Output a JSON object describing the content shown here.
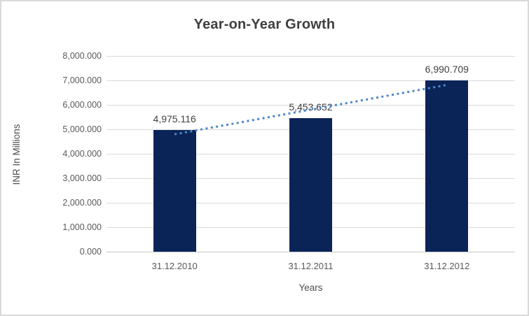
{
  "chart_data": {
    "type": "bar",
    "title": "Year-on-Year Growth",
    "xlabel": "Years",
    "ylabel": "INR In Millions",
    "categories": [
      "31.12.2010",
      "31.12.2011",
      "31.12.2012"
    ],
    "values": [
      4975.116,
      5453.652,
      6990.709
    ],
    "value_labels": [
      "4,975.116",
      "5,453.652",
      "6,990.709"
    ],
    "ylim": [
      0,
      8000
    ],
    "ytick_step": 1000,
    "ytick_labels": [
      "0.000",
      "1,000.000",
      "2,000.000",
      "3,000.000",
      "4,000.000",
      "5,000.000",
      "6,000.000",
      "7,000.000",
      "8,000.000"
    ],
    "grid": true,
    "legend": "none",
    "trendline": {
      "style": "dotted",
      "fit_values": [
        4798,
        5806,
        6815
      ],
      "color": "#4a86c9"
    },
    "colors": {
      "bar": "#0a2458",
      "gridline": "#d9d9d9",
      "axis_line": "#c6c6c6",
      "tick_text": "#595959",
      "title_text": "#3f3f3f",
      "data_label_text": "#404040",
      "border": "#d9d9d9",
      "background": "#ffffff"
    }
  }
}
